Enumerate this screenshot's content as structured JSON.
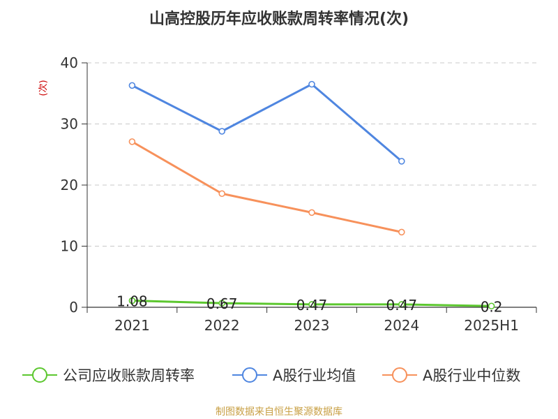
{
  "chart_data": {
    "type": "line",
    "title": "山高控股历年应收账款周转率情况(次)",
    "ylabel": "(次)",
    "categories": [
      "2021",
      "2022",
      "2023",
      "2024",
      "2025H1"
    ],
    "y_ticks": [
      0,
      10,
      20,
      30,
      40
    ],
    "ylim": [
      0,
      40
    ],
    "grid": true,
    "legend_position": "bottom",
    "series": [
      {
        "name": "公司应收账款周转率",
        "color": "#5cc72f",
        "values": [
          1.08,
          0.67,
          0.47,
          0.47,
          0.2
        ],
        "labels": [
          "1.08",
          "0.67",
          "0.47",
          "0.47",
          "0.2"
        ]
      },
      {
        "name": "A股行业均值",
        "color": "#4f86e0",
        "values": [
          36.3,
          28.8,
          36.5,
          23.9,
          null
        ]
      },
      {
        "name": "A股行业中位数",
        "color": "#f7915b",
        "values": [
          27.1,
          18.6,
          15.5,
          12.3,
          null
        ]
      }
    ],
    "source": "制图数据来自恒生聚源数据库"
  }
}
